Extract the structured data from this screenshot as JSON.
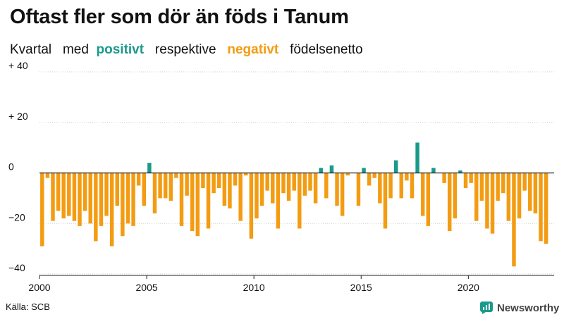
{
  "title": "Oftast fler som dör än föds i Tanum",
  "subtitle": {
    "p1": "Kvartal",
    "p2": "med",
    "pos_word": "positivt",
    "p3": "respektive",
    "neg_word": "negativt",
    "p4": "födelsenetto"
  },
  "source": "Källa: SCB",
  "brand": "Newsworthy",
  "colors": {
    "positive": "#1a9a8a",
    "negative": "#f39c12",
    "brand_icon": "#1a9a8a"
  },
  "chart_data": {
    "type": "bar",
    "title": "Oftast fler som dör än föds i Tanum",
    "subtitle": "Kvartal med positivt respektive negativt födelsenetto",
    "xlabel": "",
    "ylabel": "",
    "xlim": [
      2000,
      2024
    ],
    "ylim": [
      -40,
      40
    ],
    "y_ticks": [
      {
        "value": 40,
        "label": "+ 40"
      },
      {
        "value": 20,
        "label": "+ 20"
      },
      {
        "value": 0,
        "label": "0"
      },
      {
        "value": -20,
        "label": "−20"
      },
      {
        "value": -40,
        "label": "−40"
      }
    ],
    "x_ticks": [
      {
        "value": 2000,
        "label": "2000"
      },
      {
        "value": 2005,
        "label": "2005"
      },
      {
        "value": 2010,
        "label": "2010"
      },
      {
        "value": 2015,
        "label": "2015"
      },
      {
        "value": 2020,
        "label": "2020"
      }
    ],
    "grid": true,
    "start_year": 2000,
    "periods_per_year": 4,
    "values": [
      -29,
      -2,
      -19,
      -15,
      -18,
      -17,
      -19,
      -21,
      -15,
      -20,
      -27,
      -21,
      -17,
      -29,
      -13,
      -25,
      -20,
      -21,
      -5,
      -13,
      4,
      -16,
      -10,
      -10,
      -11,
      -2,
      -21,
      -9,
      -23,
      -25,
      -6,
      -22,
      -8,
      -6,
      -13,
      -14,
      -5,
      -19,
      -1,
      -26,
      -18,
      -13,
      -7,
      -12,
      -22,
      -8,
      -11,
      -7,
      -22,
      -9,
      -7,
      -12,
      2,
      -10,
      3,
      -13,
      -17,
      -1,
      0,
      -13,
      2,
      -5,
      -2,
      -12,
      -22,
      -10,
      5,
      -10,
      -3,
      -10,
      12,
      -17,
      -21,
      2,
      0,
      -4,
      -23,
      -18,
      1,
      -6,
      -4,
      -19,
      -11,
      -22,
      -24,
      -11,
      -8,
      -19,
      -37,
      -18,
      -7,
      -15,
      -16,
      -27,
      -28
    ]
  }
}
